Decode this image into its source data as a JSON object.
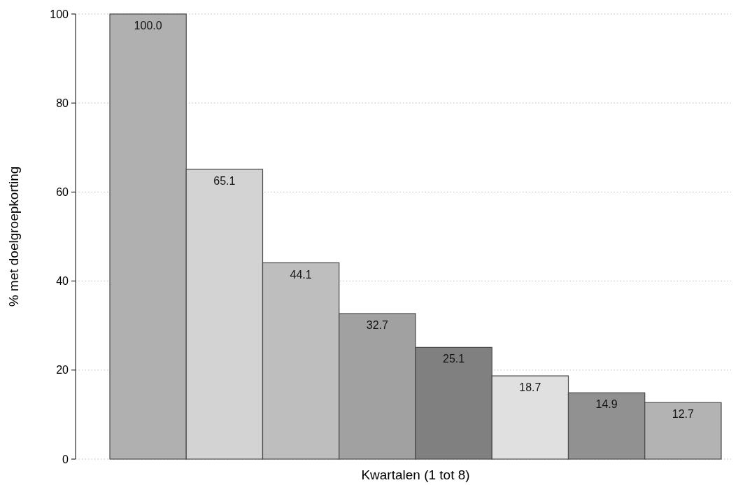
{
  "chart_data": {
    "type": "bar",
    "xlabel": "Kwartalen (1 tot 8)",
    "ylabel": "% met doelgroepkorting",
    "categories": [
      null,
      null,
      null,
      null,
      null,
      null,
      null,
      null
    ],
    "values": [
      100.0,
      65.1,
      44.1,
      32.7,
      25.1,
      18.7,
      14.9,
      12.7
    ],
    "value_labels": [
      "100.0",
      "65.1",
      "44.1",
      "32.7",
      "25.1",
      "18.7",
      "14.9",
      "12.7"
    ],
    "colors": [
      "#b0b0b0",
      "#d3d3d3",
      "#bebebe",
      "#a1a1a1",
      "#808080",
      "#e0e0e0",
      "#919191",
      "#b3b3b3"
    ],
    "ylim": [
      0,
      100
    ],
    "yticks": [
      0,
      20,
      40,
      60,
      80,
      100
    ],
    "grid": "y"
  }
}
